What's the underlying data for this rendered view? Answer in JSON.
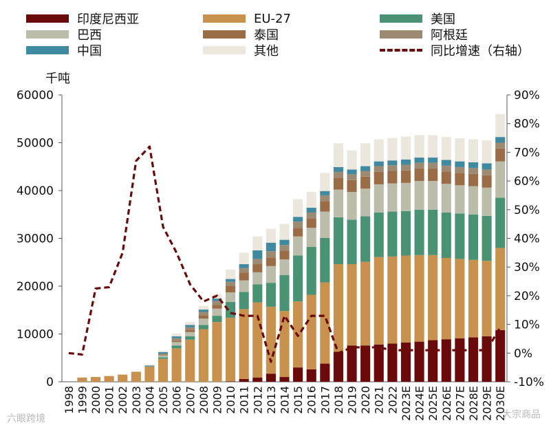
{
  "chart_data": {
    "type": "bar",
    "stacked": true,
    "unit_label": "千吨",
    "categories": [
      "1998",
      "1999",
      "2000",
      "2001",
      "2002",
      "2003",
      "2004",
      "2005",
      "2006",
      "2007",
      "2008",
      "2009",
      "2010",
      "2011",
      "2012",
      "2013",
      "2014",
      "2015",
      "2016",
      "2017",
      "2018",
      "2019",
      "2020",
      "2021",
      "2022",
      "2023E",
      "2024E",
      "2025E",
      "2026E",
      "2027E",
      "2028E",
      "2029E",
      "2030E"
    ],
    "series": [
      {
        "name": "印度尼西亚",
        "color": "#6b0a0a",
        "values": [
          0,
          0,
          0,
          0,
          0,
          0,
          0,
          0,
          0,
          0,
          0,
          0,
          100,
          600,
          900,
          1700,
          1000,
          3000,
          2600,
          3800,
          6300,
          7600,
          7600,
          7800,
          8000,
          8200,
          8400,
          8700,
          8900,
          9100,
          9300,
          9500,
          10800
        ]
      },
      {
        "name": "EU-27",
        "color": "#c8914e",
        "values": [
          0,
          900,
          1000,
          1200,
          1500,
          2100,
          3200,
          4800,
          7000,
          8800,
          11000,
          12500,
          13300,
          14600,
          15700,
          14000,
          13800,
          13800,
          15600,
          17000,
          18300,
          17000,
          17500,
          18300,
          18200,
          18200,
          18100,
          17800,
          17000,
          16600,
          16200,
          15800,
          17200
        ]
      },
      {
        "name": "美国",
        "color": "#4a9274",
        "values": [
          0,
          0,
          0,
          0,
          0,
          0,
          0,
          300,
          600,
          700,
          900,
          1300,
          3300,
          3600,
          3800,
          5000,
          7500,
          9600,
          10000,
          9300,
          9800,
          9300,
          9500,
          9300,
          9400,
          9300,
          9500,
          9500,
          9500,
          9500,
          9500,
          9400,
          10500
        ]
      },
      {
        "name": "巴西",
        "color": "#bcbcaa",
        "values": [
          0,
          0,
          0,
          0,
          0,
          0,
          0,
          400,
          700,
          900,
          1300,
          1500,
          2000,
          2400,
          2500,
          3500,
          3300,
          4000,
          4000,
          5500,
          5800,
          5800,
          5800,
          5900,
          5900,
          5900,
          6000,
          6000,
          6000,
          5900,
          5900,
          5900,
          7600
        ]
      },
      {
        "name": "泰国",
        "color": "#9b6d47",
        "values": [
          0,
          0,
          0,
          0,
          0,
          0,
          0,
          100,
          300,
          500,
          700,
          800,
          1300,
          1600,
          1700,
          1800,
          1800,
          1800,
          2000,
          2200,
          2500,
          2500,
          2500,
          2600,
          2600,
          2600,
          2600,
          2600,
          2600,
          2600,
          2600,
          2600,
          2700
        ]
      },
      {
        "name": "阿根廷",
        "color": "#9d8a73",
        "values": [
          0,
          0,
          0,
          0,
          0,
          0,
          0,
          300,
          500,
          500,
          700,
          800,
          900,
          1000,
          1100,
          1300,
          1200,
          1300,
          1200,
          1200,
          1200,
          1200,
          1200,
          1200,
          1200,
          1200,
          1200,
          1200,
          1200,
          1200,
          1200,
          1200,
          1200
        ]
      },
      {
        "name": "中国",
        "color": "#3f8aa0",
        "values": [
          0,
          0,
          0,
          0,
          0,
          0,
          200,
          300,
          400,
          500,
          500,
          500,
          600,
          800,
          1800,
          1800,
          1100,
          1000,
          1000,
          900,
          1000,
          1000,
          1000,
          1000,
          1000,
          1100,
          1100,
          1100,
          1200,
          1200,
          1200,
          1300,
          1200
        ]
      },
      {
        "name": "其他",
        "color": "#ebe7dc",
        "values": [
          0,
          0,
          0,
          0,
          0,
          0,
          200,
          300,
          600,
          600,
          800,
          900,
          2000,
          2400,
          2900,
          2900,
          3300,
          3700,
          3300,
          3800,
          5000,
          4000,
          4800,
          4600,
          4700,
          4800,
          4700,
          4700,
          4800,
          4800,
          4800,
          4800,
          4800
        ]
      }
    ],
    "line_series": {
      "name": "同比增速（右轴）",
      "color": "#6b0a0a",
      "axis": "right",
      "values": [
        0.0,
        -0.5,
        22.5,
        23,
        35,
        67,
        72,
        44,
        35,
        24,
        18,
        20,
        14,
        13,
        13,
        -3,
        13,
        6,
        13,
        13,
        0,
        2,
        2,
        2,
        1,
        1,
        1,
        1,
        1,
        1,
        1,
        1,
        9
      ]
    },
    "yaxis_left": {
      "min": 0,
      "max": 60000,
      "ticks": [
        "0",
        "10000",
        "20000",
        "30000",
        "40000",
        "50000",
        "60000"
      ]
    },
    "yaxis_right": {
      "min": -10,
      "max": 90,
      "ticks": [
        "-10%",
        "0%",
        "10%",
        "20%",
        "30%",
        "40%",
        "50%",
        "60%",
        "70%",
        "80%",
        "90%"
      ]
    },
    "legend_position": "top",
    "watermarks": [
      "六眼跨境",
      "大宗商品"
    ]
  }
}
